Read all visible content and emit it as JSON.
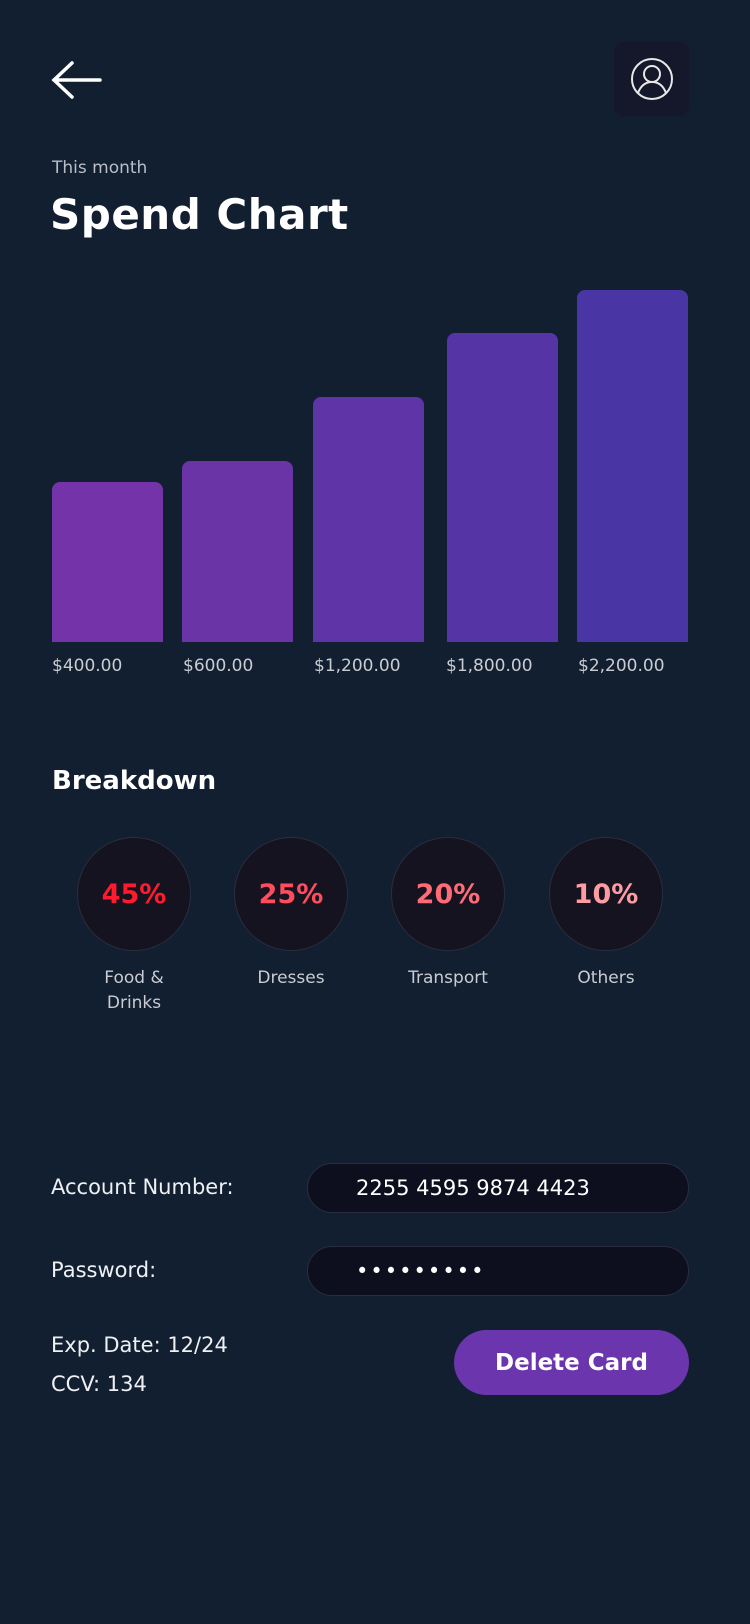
{
  "header": {
    "back_icon": "arrow-left-icon",
    "profile_icon": "user-circle-icon",
    "subtitle": "This month",
    "title": "Spend Chart"
  },
  "chart_data": {
    "type": "bar",
    "categories": [
      "$400.00",
      "$600.00",
      "$1,200.00",
      "$1,800.00",
      "$2,200.00"
    ],
    "values": [
      400,
      600,
      1200,
      1800,
      2200
    ],
    "title": "",
    "xlabel": "",
    "ylabel": "",
    "grid": false,
    "colors": [
      "#7433a8",
      "#4a35a5"
    ]
  },
  "breakdown": {
    "title": "Breakdown",
    "items": [
      {
        "percent": "45%",
        "label": "Food & Drinks",
        "color": "#ff1a2e"
      },
      {
        "percent": "25%",
        "label": "Dresses",
        "color": "#ff4d5e"
      },
      {
        "percent": "20%",
        "label": "Transport",
        "color": "#ff6b77"
      },
      {
        "percent": "10%",
        "label": "Others",
        "color": "#ff9ba2"
      }
    ]
  },
  "account": {
    "account_label": "Account Number:",
    "account_value": "2255 4595 9874 4423",
    "password_label": "Password:",
    "password_value": "•••••••••",
    "exp_date": "Exp. Date: 12/24",
    "ccv": "CCV: 134",
    "delete_label": "Delete Card",
    "accent": "#6a35ad"
  }
}
